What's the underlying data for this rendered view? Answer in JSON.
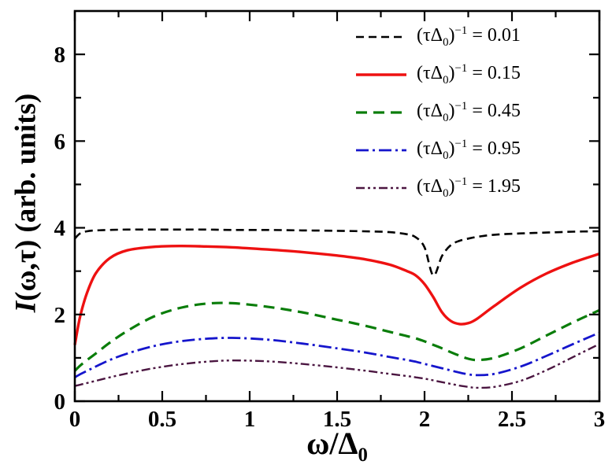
{
  "figure": {
    "background": "#ffffff",
    "xlabel": {
      "main": "ω/Δ",
      "sub": "0"
    },
    "ylabel": {
      "italic": "I",
      "rest": "(ω,τ) (arb. units)"
    }
  },
  "legend": {
    "open": "(τΔ",
    "sub": "0",
    "close": ")",
    "sup": "−1",
    "equals": " = "
  },
  "chart_data": {
    "type": "line",
    "title": "",
    "xlabel": "ω/Δ0",
    "ylabel": "I(ω,τ) (arb. units)",
    "xlim": [
      0,
      3
    ],
    "ylim": [
      0,
      9
    ],
    "grid": false,
    "legend_position": "top-right",
    "x_major_ticks": [
      0,
      0.5,
      1,
      1.5,
      2,
      2.5,
      3
    ],
    "x_tick_labels": [
      "0",
      "0.5",
      "1",
      "1.5",
      "2",
      "2.5",
      "3"
    ],
    "x_minor_ticks": [
      0.25,
      0.75,
      1.25,
      1.75,
      2.25,
      2.75
    ],
    "y_major_ticks": [
      0,
      2,
      4,
      6,
      8
    ],
    "y_tick_labels": [
      "0",
      "2",
      "4",
      "6",
      "8"
    ],
    "y_minor_ticks": [
      1,
      3,
      5,
      7
    ],
    "x": [
      0,
      0.03,
      0.07,
      0.12,
      0.2,
      0.3,
      0.45,
      0.6,
      0.75,
      0.9,
      1.1,
      1.3,
      1.5,
      1.65,
      1.8,
      1.9,
      1.95,
      2.0,
      2.05,
      2.1,
      2.15,
      2.2,
      2.25,
      2.3,
      2.4,
      2.55,
      2.7,
      2.85,
      3.0
    ],
    "series": [
      {
        "name": "(τΔ0)^−1 = 0.01",
        "legend_value": "0.01",
        "color": "#000000",
        "dash": "10,6",
        "width": 2.6,
        "y": [
          3.75,
          3.87,
          3.92,
          3.94,
          3.95,
          3.96,
          3.96,
          3.96,
          3.96,
          3.95,
          3.95,
          3.94,
          3.93,
          3.92,
          3.9,
          3.85,
          3.78,
          3.55,
          2.9,
          3.35,
          3.6,
          3.7,
          3.75,
          3.79,
          3.84,
          3.87,
          3.89,
          3.91,
          3.92
        ]
      },
      {
        "name": "(τΔ0)^−1 = 0.15",
        "legend_value": "0.15",
        "color": "#ee1111",
        "dash": "",
        "width": 3.4,
        "y": [
          1.3,
          1.95,
          2.5,
          2.95,
          3.3,
          3.48,
          3.56,
          3.58,
          3.57,
          3.55,
          3.5,
          3.44,
          3.36,
          3.28,
          3.15,
          3.0,
          2.9,
          2.7,
          2.4,
          2.05,
          1.85,
          1.78,
          1.8,
          1.9,
          2.2,
          2.62,
          2.95,
          3.2,
          3.4
        ]
      },
      {
        "name": "(τΔ0)^−1 = 0.45",
        "legend_value": "0.45",
        "color": "#0a7d0a",
        "dash": "14,8",
        "width": 3.2,
        "y": [
          0.7,
          0.82,
          0.95,
          1.1,
          1.35,
          1.62,
          1.95,
          2.15,
          2.25,
          2.26,
          2.18,
          2.05,
          1.88,
          1.75,
          1.6,
          1.5,
          1.45,
          1.38,
          1.3,
          1.22,
          1.13,
          1.05,
          0.98,
          0.95,
          1.0,
          1.22,
          1.52,
          1.82,
          2.1
        ]
      },
      {
        "name": "(τΔ0)^−1 = 0.95",
        "legend_value": "0.95",
        "color": "#1515cc",
        "dash": "16,5,3,5",
        "width": 2.8,
        "y": [
          0.55,
          0.62,
          0.7,
          0.8,
          0.95,
          1.1,
          1.27,
          1.38,
          1.44,
          1.46,
          1.42,
          1.33,
          1.22,
          1.13,
          1.02,
          0.95,
          0.91,
          0.86,
          0.81,
          0.76,
          0.71,
          0.66,
          0.62,
          0.6,
          0.63,
          0.8,
          1.05,
          1.32,
          1.58
        ]
      },
      {
        "name": "(τΔ0)^−1 = 1.95",
        "legend_value": "1.95",
        "color": "#4b1641",
        "dash": "11,4,3,4,3,4",
        "width": 2.4,
        "y": [
          0.35,
          0.38,
          0.42,
          0.47,
          0.55,
          0.64,
          0.76,
          0.85,
          0.91,
          0.94,
          0.92,
          0.86,
          0.78,
          0.71,
          0.63,
          0.58,
          0.55,
          0.52,
          0.48,
          0.44,
          0.4,
          0.36,
          0.33,
          0.31,
          0.33,
          0.47,
          0.72,
          1.02,
          1.32
        ]
      }
    ]
  }
}
